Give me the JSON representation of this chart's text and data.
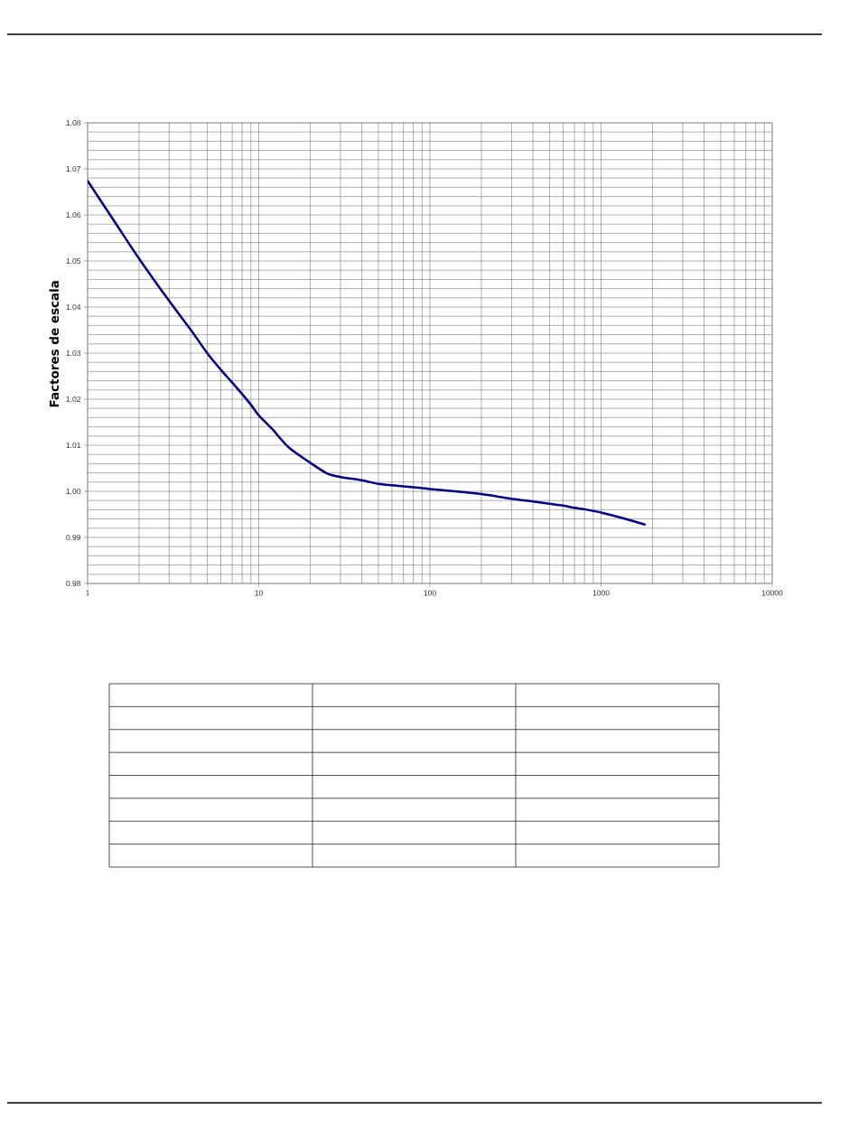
{
  "chart_data": {
    "type": "line",
    "ylabel": "Factores de escala",
    "x": [
      1,
      1.5,
      2,
      3,
      4,
      5,
      6,
      7,
      8,
      9,
      10,
      12,
      15,
      20,
      25,
      30,
      40,
      50,
      60,
      70,
      80,
      100,
      150,
      200,
      300,
      400,
      500,
      600,
      700,
      800,
      1000,
      1300,
      1800
    ],
    "series": [
      {
        "color": "#000080",
        "values": [
          1.0674,
          1.0575,
          1.0505,
          1.0413,
          1.0351,
          1.03,
          1.0264,
          1.0236,
          1.0211,
          1.0188,
          1.0165,
          1.0135,
          1.0095,
          1.0062,
          1.0039,
          1.0031,
          1.0024,
          1.0016,
          1.0013,
          1.0011,
          1.0009,
          1.0005,
          0.9999,
          0.9994,
          0.9984,
          0.9978,
          0.9973,
          0.9969,
          0.9964,
          0.9961,
          0.9954,
          0.9943,
          0.9928
        ]
      }
    ],
    "xlim": [
      1,
      10000
    ],
    "ylim": [
      0.98,
      1.08
    ],
    "log": "x",
    "xticks": [
      1,
      {
        "value": 2,
        "label": null
      },
      {
        "value": 3,
        "label": null
      },
      {
        "value": 4,
        "label": null
      },
      {
        "value": 5,
        "label": null
      },
      {
        "value": 6,
        "label": null
      },
      {
        "value": 7,
        "label": null
      },
      {
        "value": 8,
        "label": null
      },
      {
        "value": 9,
        "label": null
      },
      10,
      {
        "value": 20,
        "label": null
      },
      {
        "value": 30,
        "label": null
      },
      {
        "value": 40,
        "label": null
      },
      {
        "value": 50,
        "label": null
      },
      {
        "value": 60,
        "label": null
      },
      {
        "value": 70,
        "label": null
      },
      {
        "value": 80,
        "label": null
      },
      {
        "value": 90,
        "label": null
      },
      100,
      {
        "value": 200,
        "label": null
      },
      {
        "value": 300,
        "label": null
      },
      {
        "value": 400,
        "label": null
      },
      {
        "value": 500,
        "label": null
      },
      {
        "value": 600,
        "label": null
      },
      {
        "value": 700,
        "label": null
      },
      {
        "value": 800,
        "label": null
      },
      {
        "value": 900,
        "label": null
      },
      1000,
      {
        "value": 2000,
        "label": null
      },
      {
        "value": 3000,
        "label": null
      },
      {
        "value": 4000,
        "label": null
      },
      {
        "value": 5000,
        "label": null
      },
      {
        "value": 6000,
        "label": null
      },
      {
        "value": 7000,
        "label": null
      },
      {
        "value": 8000,
        "label": null
      },
      {
        "value": 9000,
        "label": null
      },
      10000
    ],
    "yticks": [
      0.98,
      {
        "value": 0.982,
        "label": null
      },
      {
        "value": 0.984,
        "label": null
      },
      {
        "value": 0.986,
        "label": null
      },
      {
        "value": 0.988,
        "label": null
      },
      0.99,
      {
        "value": 0.992,
        "label": null
      },
      {
        "value": 0.994,
        "label": null
      },
      {
        "value": 0.996,
        "label": null
      },
      {
        "value": 0.998,
        "label": null
      },
      {
        "value": 1,
        "label": "1.00"
      },
      {
        "value": 1.002,
        "label": null
      },
      {
        "value": 1.004,
        "label": null
      },
      {
        "value": 1.006,
        "label": null
      },
      {
        "value": 1.008,
        "label": null
      },
      1.01,
      {
        "value": 1.012,
        "label": null
      },
      {
        "value": 1.014,
        "label": null
      },
      {
        "value": 1.016,
        "label": null
      },
      {
        "value": 1.018,
        "label": null
      },
      1.02,
      {
        "value": 1.022,
        "label": null
      },
      {
        "value": 1.024,
        "label": null
      },
      {
        "value": 1.026,
        "label": null
      },
      {
        "value": 1.028,
        "label": null
      },
      1.03,
      {
        "value": 1.032,
        "label": null
      },
      {
        "value": 1.034,
        "label": null
      },
      {
        "value": 1.036,
        "label": null
      },
      {
        "value": 1.038,
        "label": null
      },
      1.04,
      {
        "value": 1.042,
        "label": null
      },
      {
        "value": 1.044,
        "label": null
      },
      {
        "value": 1.046,
        "label": null
      },
      {
        "value": 1.048,
        "label": null
      },
      1.05,
      {
        "value": 1.052,
        "label": null
      },
      {
        "value": 1.054,
        "label": null
      },
      {
        "value": 1.056,
        "label": null
      },
      {
        "value": 1.058,
        "label": null
      },
      1.06,
      {
        "value": 1.062,
        "label": null
      },
      {
        "value": 1.064,
        "label": null
      },
      {
        "value": 1.066,
        "label": null
      },
      {
        "value": 1.068,
        "label": null
      },
      1.07,
      {
        "value": 1.072,
        "label": null
      },
      {
        "value": 1.074,
        "label": null
      },
      {
        "value": 1.076,
        "label": null
      },
      {
        "value": 1.078,
        "label": null
      },
      1.08
    ],
    "grid": true,
    "marker": "none",
    "line_style": "solid"
  }
}
